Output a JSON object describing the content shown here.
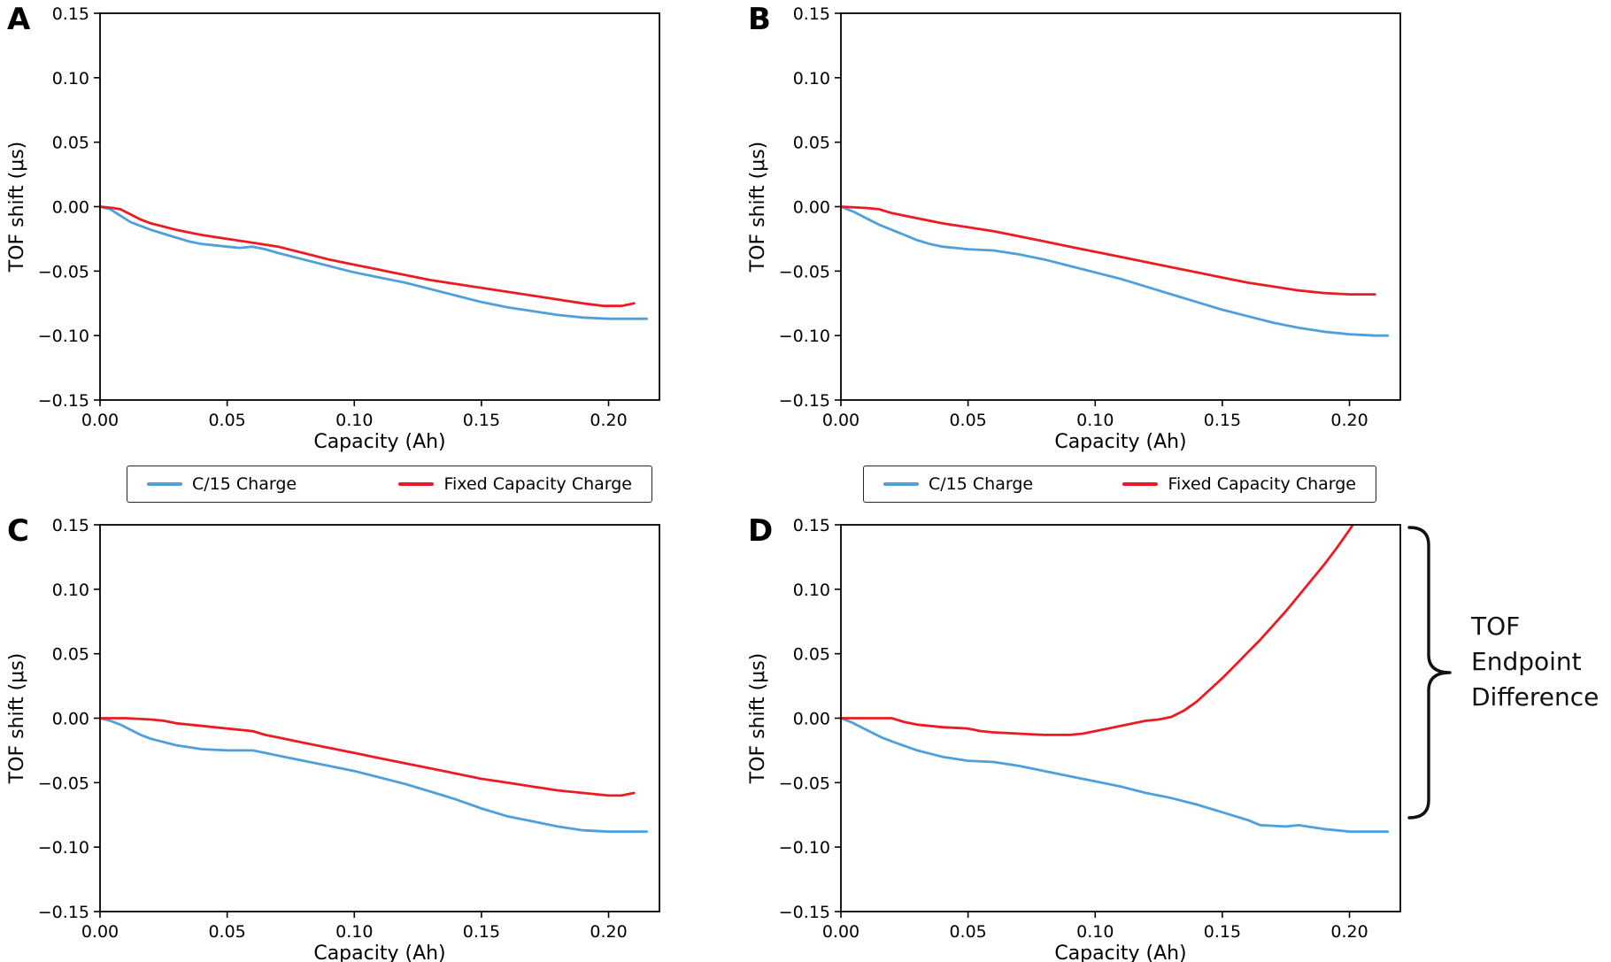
{
  "figure": {
    "colors": {
      "c15": "#4E9FDB",
      "fixed": "#EC1B23",
      "axis": "#000000",
      "background": "#ffffff"
    },
    "legend": {
      "c15_label": "C/15 Charge",
      "fixed_label": "Fixed Capacity Charge"
    },
    "annotation": {
      "lines": [
        "TOF",
        "Endpoint",
        "Difference"
      ]
    }
  },
  "chart_data": [
    {
      "id": "A",
      "type": "line",
      "xlabel": "Capacity (Ah)",
      "ylabel": "TOF shift (μs)",
      "xlim": [
        0,
        0.22
      ],
      "ylim": [
        -0.15,
        0.15
      ],
      "xticks": [
        0.0,
        0.05,
        0.1,
        0.15,
        0.2
      ],
      "yticks": [
        -0.15,
        -0.1,
        -0.05,
        0.0,
        0.05,
        0.1,
        0.15
      ],
      "grid": false,
      "legend_position": "below",
      "series": [
        {
          "name": "C/15 Charge",
          "color": "#4E9FDB",
          "points": [
            [
              0,
              0
            ],
            [
              0.004,
              -0.002
            ],
            [
              0.008,
              -0.007
            ],
            [
              0.012,
              -0.012
            ],
            [
              0.016,
              -0.015
            ],
            [
              0.02,
              -0.018
            ],
            [
              0.025,
              -0.021
            ],
            [
              0.03,
              -0.024
            ],
            [
              0.035,
              -0.027
            ],
            [
              0.04,
              -0.029
            ],
            [
              0.045,
              -0.03
            ],
            [
              0.05,
              -0.031
            ],
            [
              0.055,
              -0.032
            ],
            [
              0.06,
              -0.031
            ],
            [
              0.065,
              -0.033
            ],
            [
              0.07,
              -0.036
            ],
            [
              0.08,
              -0.041
            ],
            [
              0.09,
              -0.046
            ],
            [
              0.1,
              -0.051
            ],
            [
              0.11,
              -0.055
            ],
            [
              0.115,
              -0.057
            ],
            [
              0.12,
              -0.059
            ],
            [
              0.13,
              -0.064
            ],
            [
              0.14,
              -0.069
            ],
            [
              0.15,
              -0.074
            ],
            [
              0.16,
              -0.078
            ],
            [
              0.17,
              -0.081
            ],
            [
              0.18,
              -0.084
            ],
            [
              0.19,
              -0.086
            ],
            [
              0.2,
              -0.087
            ],
            [
              0.215,
              -0.087
            ]
          ]
        },
        {
          "name": "Fixed Capacity Charge",
          "color": "#EC1B23",
          "points": [
            [
              0,
              0
            ],
            [
              0.005,
              -0.001
            ],
            [
              0.008,
              -0.002
            ],
            [
              0.012,
              -0.006
            ],
            [
              0.016,
              -0.01
            ],
            [
              0.02,
              -0.013
            ],
            [
              0.03,
              -0.018
            ],
            [
              0.04,
              -0.022
            ],
            [
              0.05,
              -0.025
            ],
            [
              0.06,
              -0.028
            ],
            [
              0.07,
              -0.031
            ],
            [
              0.08,
              -0.036
            ],
            [
              0.09,
              -0.041
            ],
            [
              0.1,
              -0.045
            ],
            [
              0.11,
              -0.049
            ],
            [
              0.12,
              -0.053
            ],
            [
              0.13,
              -0.057
            ],
            [
              0.14,
              -0.06
            ],
            [
              0.15,
              -0.063
            ],
            [
              0.16,
              -0.066
            ],
            [
              0.17,
              -0.069
            ],
            [
              0.18,
              -0.072
            ],
            [
              0.19,
              -0.075
            ],
            [
              0.198,
              -0.077
            ],
            [
              0.205,
              -0.077
            ],
            [
              0.21,
              -0.075
            ]
          ]
        }
      ]
    },
    {
      "id": "B",
      "type": "line",
      "xlabel": "Capacity (Ah)",
      "ylabel": "TOF shift (μs)",
      "xlim": [
        0,
        0.22
      ],
      "ylim": [
        -0.15,
        0.15
      ],
      "xticks": [
        0.0,
        0.05,
        0.1,
        0.15,
        0.2
      ],
      "yticks": [
        -0.15,
        -0.1,
        -0.05,
        0.0,
        0.05,
        0.1,
        0.15
      ],
      "grid": false,
      "legend_position": "below",
      "series": [
        {
          "name": "C/15 Charge",
          "color": "#4E9FDB",
          "points": [
            [
              0,
              0
            ],
            [
              0.005,
              -0.004
            ],
            [
              0.01,
              -0.009
            ],
            [
              0.015,
              -0.014
            ],
            [
              0.02,
              -0.018
            ],
            [
              0.025,
              -0.022
            ],
            [
              0.03,
              -0.026
            ],
            [
              0.035,
              -0.029
            ],
            [
              0.04,
              -0.031
            ],
            [
              0.05,
              -0.033
            ],
            [
              0.06,
              -0.034
            ],
            [
              0.07,
              -0.037
            ],
            [
              0.08,
              -0.041
            ],
            [
              0.09,
              -0.046
            ],
            [
              0.1,
              -0.051
            ],
            [
              0.11,
              -0.056
            ],
            [
              0.12,
              -0.062
            ],
            [
              0.13,
              -0.068
            ],
            [
              0.14,
              -0.074
            ],
            [
              0.15,
              -0.08
            ],
            [
              0.16,
              -0.085
            ],
            [
              0.17,
              -0.09
            ],
            [
              0.18,
              -0.094
            ],
            [
              0.19,
              -0.097
            ],
            [
              0.2,
              -0.099
            ],
            [
              0.21,
              -0.1
            ],
            [
              0.215,
              -0.1
            ]
          ]
        },
        {
          "name": "Fixed Capacity Charge",
          "color": "#EC1B23",
          "points": [
            [
              0,
              0
            ],
            [
              0.01,
              -0.001
            ],
            [
              0.015,
              -0.002
            ],
            [
              0.02,
              -0.005
            ],
            [
              0.03,
              -0.009
            ],
            [
              0.04,
              -0.013
            ],
            [
              0.05,
              -0.016
            ],
            [
              0.06,
              -0.019
            ],
            [
              0.07,
              -0.023
            ],
            [
              0.08,
              -0.027
            ],
            [
              0.09,
              -0.031
            ],
            [
              0.1,
              -0.035
            ],
            [
              0.11,
              -0.039
            ],
            [
              0.12,
              -0.043
            ],
            [
              0.13,
              -0.047
            ],
            [
              0.14,
              -0.051
            ],
            [
              0.15,
              -0.055
            ],
            [
              0.16,
              -0.059
            ],
            [
              0.17,
              -0.062
            ],
            [
              0.18,
              -0.065
            ],
            [
              0.19,
              -0.067
            ],
            [
              0.2,
              -0.068
            ],
            [
              0.21,
              -0.068
            ]
          ]
        }
      ]
    },
    {
      "id": "C",
      "type": "line",
      "xlabel": "Capacity (Ah)",
      "ylabel": "TOF shift (μs)",
      "xlim": [
        0,
        0.22
      ],
      "ylim": [
        -0.15,
        0.15
      ],
      "xticks": [
        0.0,
        0.05,
        0.1,
        0.15,
        0.2
      ],
      "yticks": [
        -0.15,
        -0.1,
        -0.05,
        0.0,
        0.05,
        0.1,
        0.15
      ],
      "grid": false,
      "legend_position": "none",
      "series": [
        {
          "name": "C/15 Charge",
          "color": "#4E9FDB",
          "points": [
            [
              0,
              0
            ],
            [
              0.004,
              -0.002
            ],
            [
              0.008,
              -0.005
            ],
            [
              0.012,
              -0.009
            ],
            [
              0.016,
              -0.013
            ],
            [
              0.02,
              -0.016
            ],
            [
              0.03,
              -0.021
            ],
            [
              0.04,
              -0.024
            ],
            [
              0.05,
              -0.025
            ],
            [
              0.06,
              -0.025
            ],
            [
              0.065,
              -0.027
            ],
            [
              0.07,
              -0.029
            ],
            [
              0.08,
              -0.033
            ],
            [
              0.09,
              -0.037
            ],
            [
              0.1,
              -0.041
            ],
            [
              0.11,
              -0.046
            ],
            [
              0.12,
              -0.051
            ],
            [
              0.13,
              -0.057
            ],
            [
              0.14,
              -0.063
            ],
            [
              0.15,
              -0.07
            ],
            [
              0.16,
              -0.076
            ],
            [
              0.17,
              -0.08
            ],
            [
              0.18,
              -0.084
            ],
            [
              0.19,
              -0.087
            ],
            [
              0.2,
              -0.088
            ],
            [
              0.215,
              -0.088
            ]
          ]
        },
        {
          "name": "Fixed Capacity Charge",
          "color": "#EC1B23",
          "points": [
            [
              0,
              0
            ],
            [
              0.01,
              0
            ],
            [
              0.02,
              -0.001
            ],
            [
              0.025,
              -0.002
            ],
            [
              0.03,
              -0.004
            ],
            [
              0.04,
              -0.006
            ],
            [
              0.05,
              -0.008
            ],
            [
              0.06,
              -0.01
            ],
            [
              0.065,
              -0.013
            ],
            [
              0.07,
              -0.015
            ],
            [
              0.08,
              -0.019
            ],
            [
              0.09,
              -0.023
            ],
            [
              0.1,
              -0.027
            ],
            [
              0.11,
              -0.031
            ],
            [
              0.12,
              -0.035
            ],
            [
              0.13,
              -0.039
            ],
            [
              0.14,
              -0.043
            ],
            [
              0.15,
              -0.047
            ],
            [
              0.16,
              -0.05
            ],
            [
              0.17,
              -0.053
            ],
            [
              0.18,
              -0.056
            ],
            [
              0.19,
              -0.058
            ],
            [
              0.2,
              -0.06
            ],
            [
              0.205,
              -0.06
            ],
            [
              0.21,
              -0.058
            ]
          ]
        }
      ]
    },
    {
      "id": "D",
      "type": "line",
      "xlabel": "Capacity (Ah)",
      "ylabel": "TOF shift (μs)",
      "xlim": [
        0,
        0.22
      ],
      "ylim": [
        -0.15,
        0.15
      ],
      "xticks": [
        0.0,
        0.05,
        0.1,
        0.15,
        0.2
      ],
      "yticks": [
        -0.15,
        -0.1,
        -0.05,
        0.0,
        0.05,
        0.1,
        0.15
      ],
      "grid": false,
      "legend_position": "none",
      "annotation": "TOF Endpoint Difference",
      "series": [
        {
          "name": "C/15 Charge",
          "color": "#4E9FDB",
          "points": [
            [
              0,
              0
            ],
            [
              0.004,
              -0.003
            ],
            [
              0.008,
              -0.007
            ],
            [
              0.012,
              -0.011
            ],
            [
              0.016,
              -0.015
            ],
            [
              0.02,
              -0.018
            ],
            [
              0.03,
              -0.025
            ],
            [
              0.04,
              -0.03
            ],
            [
              0.05,
              -0.033
            ],
            [
              0.06,
              -0.034
            ],
            [
              0.07,
              -0.037
            ],
            [
              0.08,
              -0.041
            ],
            [
              0.09,
              -0.045
            ],
            [
              0.1,
              -0.049
            ],
            [
              0.11,
              -0.053
            ],
            [
              0.12,
              -0.058
            ],
            [
              0.13,
              -0.062
            ],
            [
              0.14,
              -0.067
            ],
            [
              0.15,
              -0.073
            ],
            [
              0.16,
              -0.079
            ],
            [
              0.165,
              -0.083
            ],
            [
              0.175,
              -0.084
            ],
            [
              0.18,
              -0.083
            ],
            [
              0.19,
              -0.086
            ],
            [
              0.195,
              -0.087
            ],
            [
              0.2,
              -0.088
            ],
            [
              0.215,
              -0.088
            ]
          ]
        },
        {
          "name": "Fixed Capacity Charge",
          "color": "#EC1B23",
          "points": [
            [
              0,
              0
            ],
            [
              0.01,
              0
            ],
            [
              0.02,
              0
            ],
            [
              0.025,
              -0.003
            ],
            [
              0.03,
              -0.005
            ],
            [
              0.04,
              -0.007
            ],
            [
              0.05,
              -0.008
            ],
            [
              0.055,
              -0.01
            ],
            [
              0.06,
              -0.011
            ],
            [
              0.07,
              -0.012
            ],
            [
              0.08,
              -0.013
            ],
            [
              0.09,
              -0.013
            ],
            [
              0.095,
              -0.012
            ],
            [
              0.1,
              -0.01
            ],
            [
              0.105,
              -0.008
            ],
            [
              0.11,
              -0.006
            ],
            [
              0.115,
              -0.004
            ],
            [
              0.12,
              -0.002
            ],
            [
              0.125,
              -0.001
            ],
            [
              0.13,
              0.001
            ],
            [
              0.135,
              0.006
            ],
            [
              0.14,
              0.013
            ],
            [
              0.145,
              0.022
            ],
            [
              0.15,
              0.031
            ],
            [
              0.155,
              0.041
            ],
            [
              0.16,
              0.051
            ],
            [
              0.165,
              0.061
            ],
            [
              0.17,
              0.072
            ],
            [
              0.175,
              0.083
            ],
            [
              0.18,
              0.095
            ],
            [
              0.185,
              0.107
            ],
            [
              0.19,
              0.119
            ],
            [
              0.195,
              0.132
            ],
            [
              0.2,
              0.146
            ],
            [
              0.202,
              0.152
            ]
          ]
        }
      ]
    }
  ]
}
